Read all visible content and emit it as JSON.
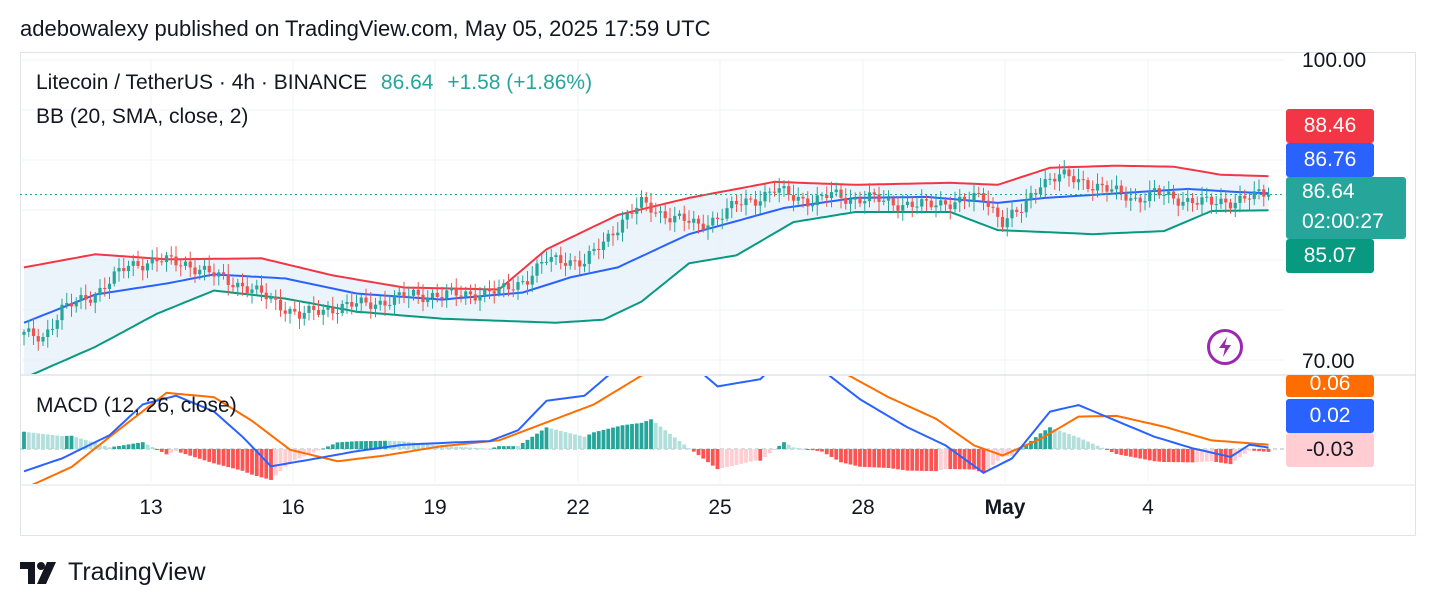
{
  "publisher_line": "adebowalexy published on TradingView.com, May 05, 2025 17:59 UTC",
  "legend": {
    "symbol": "Litecoin / TetherUS · 4h · BINANCE",
    "price": "86.64",
    "change": "+1.58 (+1.86%)",
    "bb": "BB (20, SMA, close, 2)",
    "macd": "MACD (12, 26, close)"
  },
  "price_axis": {
    "top_label": "100.00",
    "bottom_label": "70.00"
  },
  "badges": {
    "bb_upper": "88.46",
    "bb_basis": "86.76",
    "last_price": "86.64",
    "countdown": "02:00:27",
    "bb_lower": "85.07",
    "macd_signal": "0.06",
    "macd_line": "0.02",
    "macd_hist": "-0.03"
  },
  "x_axis": {
    "labels": [
      "13",
      "16",
      "19",
      "22",
      "25",
      "28",
      "May",
      "4"
    ]
  },
  "brand": "TradingView",
  "colors": {
    "up": "#26a69a",
    "down": "#ef5350",
    "bb_upper": "#f23645",
    "bb_basis": "#2962ff",
    "bb_lower": "#089981",
    "bb_fill": "#e3effa",
    "macd_line": "#2962ff",
    "signal_line": "#ff6d00",
    "hist_up_strong": "#26a69a",
    "hist_up_weak": "#b2dfdb",
    "hist_down_strong": "#ff5252",
    "hist_down_weak": "#ffcdd2",
    "badge_upper": "#f23645",
    "badge_basis": "#2962ff",
    "badge_lower": "#089981",
    "badge_signal": "#ff6d00",
    "badge_hist": "#ffcdd2",
    "lightning": "#9c27b0"
  },
  "chart_data": [
    {
      "type": "candlestick",
      "title": "Litecoin / TetherUS · 4h · BINANCE",
      "indicator": "BB (20, SMA, close, 2)",
      "ylim": [
        70,
        100
      ],
      "x_ticks": [
        "13",
        "16",
        "19",
        "22",
        "25",
        "28",
        "May",
        "4"
      ],
      "last_close": 86.64,
      "close_anchors": [
        [
          0,
          72.7
        ],
        [
          4,
          72.5
        ],
        [
          8,
          75.2
        ],
        [
          15,
          76.8
        ],
        [
          22,
          79.6
        ],
        [
          28,
          80.1
        ],
        [
          34,
          79.8
        ],
        [
          40,
          78.6
        ],
        [
          46,
          77.6
        ],
        [
          52,
          76.2
        ],
        [
          58,
          74.6
        ],
        [
          64,
          75.3
        ],
        [
          70,
          75.7
        ],
        [
          76,
          76.0
        ],
        [
          82,
          76.7
        ],
        [
          88,
          76.6
        ],
        [
          94,
          76.8
        ],
        [
          100,
          77.0
        ],
        [
          106,
          78.3
        ],
        [
          110,
          80.1
        ],
        [
          114,
          80.2
        ],
        [
          118,
          79.8
        ],
        [
          122,
          81.9
        ],
        [
          126,
          84.1
        ],
        [
          130,
          85.7
        ],
        [
          134,
          84.8
        ],
        [
          138,
          84.2
        ],
        [
          142,
          83.5
        ],
        [
          146,
          84.4
        ],
        [
          150,
          85.6
        ],
        [
          154,
          86.2
        ],
        [
          158,
          87.1
        ],
        [
          162,
          86.4
        ],
        [
          166,
          86.0
        ],
        [
          170,
          86.6
        ],
        [
          174,
          86.2
        ],
        [
          178,
          86.3
        ],
        [
          182,
          85.8
        ],
        [
          186,
          85.7
        ],
        [
          190,
          85.5
        ],
        [
          194,
          85.9
        ],
        [
          198,
          86.0
        ],
        [
          202,
          86.4
        ],
        [
          206,
          84.0
        ],
        [
          210,
          85.0
        ],
        [
          214,
          87.9
        ],
        [
          218,
          88.5
        ],
        [
          222,
          88.0
        ],
        [
          226,
          87.5
        ],
        [
          230,
          86.8
        ],
        [
          234,
          86.2
        ],
        [
          238,
          86.8
        ],
        [
          242,
          86.2
        ],
        [
          246,
          86.1
        ],
        [
          250,
          85.7
        ],
        [
          254,
          86.0
        ],
        [
          258,
          86.4
        ],
        [
          262,
          86.64
        ]
      ],
      "bb_upper": [
        [
          0,
          79.4
        ],
        [
          15,
          80.7
        ],
        [
          30,
          80.2
        ],
        [
          50,
          80.3
        ],
        [
          65,
          78.6
        ],
        [
          80,
          77.4
        ],
        [
          100,
          77.2
        ],
        [
          110,
          81.2
        ],
        [
          125,
          84.6
        ],
        [
          140,
          86.3
        ],
        [
          158,
          87.9
        ],
        [
          175,
          87.6
        ],
        [
          195,
          87.8
        ],
        [
          205,
          87.6
        ],
        [
          216,
          89.3
        ],
        [
          230,
          89.5
        ],
        [
          242,
          89.4
        ],
        [
          252,
          88.6
        ],
        [
          262,
          88.46
        ]
      ],
      "bb_basis": [
        [
          0,
          73.9
        ],
        [
          15,
          76.7
        ],
        [
          30,
          77.8
        ],
        [
          40,
          78.7
        ],
        [
          55,
          78.3
        ],
        [
          70,
          76.8
        ],
        [
          88,
          76.2
        ],
        [
          105,
          76.9
        ],
        [
          115,
          78.4
        ],
        [
          125,
          79.4
        ],
        [
          140,
          82.7
        ],
        [
          160,
          85.3
        ],
        [
          175,
          86.3
        ],
        [
          190,
          86.4
        ],
        [
          205,
          85.8
        ],
        [
          215,
          86.3
        ],
        [
          235,
          86.9
        ],
        [
          245,
          87.2
        ],
        [
          255,
          86.9
        ],
        [
          262,
          86.76
        ]
      ],
      "bb_lower": [
        [
          0,
          68.4
        ],
        [
          15,
          71.5
        ],
        [
          28,
          74.8
        ],
        [
          40,
          77.1
        ],
        [
          55,
          76.3
        ],
        [
          70,
          75.0
        ],
        [
          88,
          74.3
        ],
        [
          100,
          74.1
        ],
        [
          112,
          73.9
        ],
        [
          122,
          74.2
        ],
        [
          130,
          76.0
        ],
        [
          140,
          79.8
        ],
        [
          150,
          80.6
        ],
        [
          162,
          83.9
        ],
        [
          175,
          84.9
        ],
        [
          195,
          84.9
        ],
        [
          205,
          83.1
        ],
        [
          225,
          82.7
        ],
        [
          240,
          83.0
        ],
        [
          250,
          85.0
        ],
        [
          262,
          85.07
        ]
      ]
    },
    {
      "type": "macd",
      "title": "MACD (12, 26, close)",
      "last_macd": 0.02,
      "last_signal": 0.06,
      "last_histogram": -0.03,
      "macd_anchors": [
        [
          0,
          -0.31
        ],
        [
          8,
          -0.13
        ],
        [
          18,
          0.19
        ],
        [
          25,
          0.62
        ],
        [
          32,
          0.74
        ],
        [
          40,
          0.52
        ],
        [
          46,
          0.17
        ],
        [
          52,
          -0.24
        ],
        [
          60,
          -0.15
        ],
        [
          70,
          -0.03
        ],
        [
          80,
          0.06
        ],
        [
          90,
          0.09
        ],
        [
          98,
          0.11
        ],
        [
          104,
          0.26
        ],
        [
          110,
          0.67
        ],
        [
          118,
          0.74
        ],
        [
          126,
          1.19
        ],
        [
          132,
          1.48
        ],
        [
          138,
          1.32
        ],
        [
          146,
          0.87
        ],
        [
          155,
          0.97
        ],
        [
          160,
          1.29
        ],
        [
          168,
          1.1
        ],
        [
          176,
          0.69
        ],
        [
          186,
          0.3
        ],
        [
          194,
          0.05
        ],
        [
          202,
          -0.33
        ],
        [
          208,
          -0.13
        ],
        [
          216,
          0.52
        ],
        [
          222,
          0.61
        ],
        [
          230,
          0.39
        ],
        [
          238,
          0.17
        ],
        [
          246,
          0.01
        ],
        [
          254,
          -0.11
        ],
        [
          258,
          0.06
        ],
        [
          262,
          0.02
        ]
      ],
      "signal_anchors": [
        [
          0,
          -0.55
        ],
        [
          10,
          -0.25
        ],
        [
          20,
          0.27
        ],
        [
          30,
          0.78
        ],
        [
          40,
          0.72
        ],
        [
          48,
          0.39
        ],
        [
          56,
          -0.01
        ],
        [
          66,
          -0.17
        ],
        [
          76,
          -0.09
        ],
        [
          88,
          0.04
        ],
        [
          100,
          0.12
        ],
        [
          110,
          0.37
        ],
        [
          120,
          0.62
        ],
        [
          130,
          1.02
        ],
        [
          138,
          1.21
        ],
        [
          146,
          1.15
        ],
        [
          154,
          1.12
        ],
        [
          162,
          1.22
        ],
        [
          172,
          1.08
        ],
        [
          182,
          0.72
        ],
        [
          192,
          0.42
        ],
        [
          200,
          0.05
        ],
        [
          206,
          -0.09
        ],
        [
          214,
          0.14
        ],
        [
          222,
          0.45
        ],
        [
          230,
          0.46
        ],
        [
          240,
          0.31
        ],
        [
          250,
          0.12
        ],
        [
          262,
          0.06
        ]
      ]
    }
  ]
}
